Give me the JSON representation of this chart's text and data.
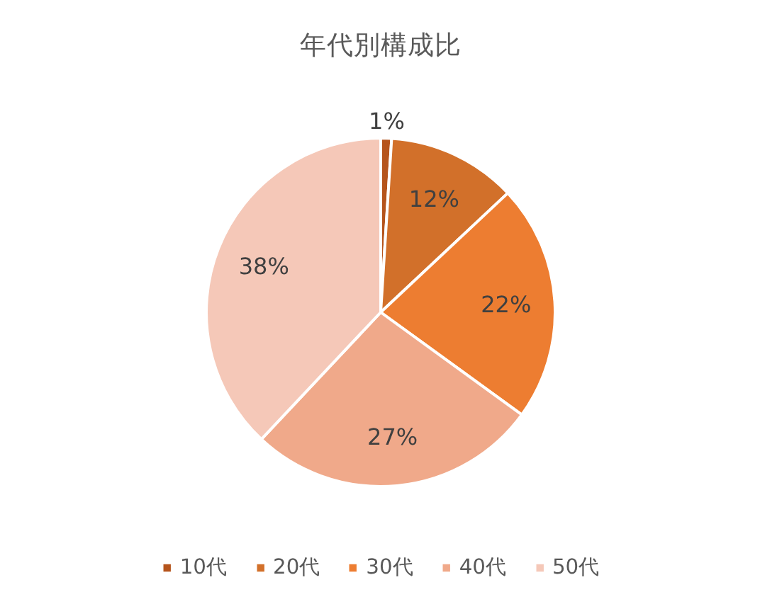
{
  "chart_data": {
    "type": "pie",
    "title": "年代別構成比",
    "categories": [
      "10代",
      "20代",
      "30代",
      "40代",
      "50代"
    ],
    "values": [
      1,
      12,
      22,
      27,
      38
    ],
    "colors": [
      "#b5541c",
      "#d2702a",
      "#ed7d31",
      "#f0a98a",
      "#f5c8b8"
    ],
    "value_labels": [
      "1%",
      "12%",
      "22%",
      "27%",
      "38%"
    ],
    "legend": "bottom"
  }
}
